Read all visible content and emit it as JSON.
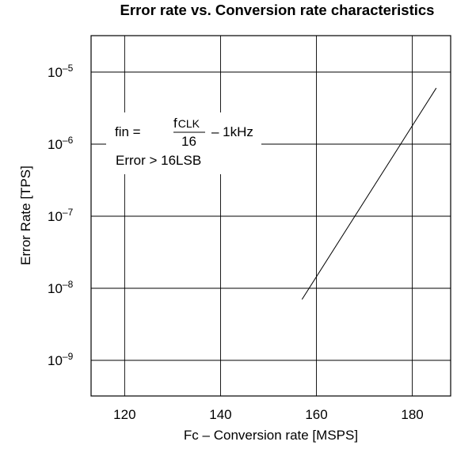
{
  "chart_data": {
    "type": "line",
    "title": "Error rate vs. Conversion rate characteristics",
    "xlabel": "Fc – Conversion rate [MSPS]",
    "ylabel": "Error Rate [TPS]",
    "xlim": [
      113,
      188
    ],
    "x_ticks": [
      {
        "value": 120,
        "label": "120"
      },
      {
        "value": 140,
        "label": "140"
      },
      {
        "value": 160,
        "label": "160"
      },
      {
        "value": 180,
        "label": "180"
      }
    ],
    "y_scale": "log",
    "y_ticks": [
      {
        "exp": -5,
        "base": "10",
        "sup": "–5"
      },
      {
        "exp": -6,
        "base": "10",
        "sup": "–6"
      },
      {
        "exp": -7,
        "base": "10",
        "sup": "–7"
      },
      {
        "exp": -8,
        "base": "10",
        "sup": "–8"
      },
      {
        "exp": -9,
        "base": "10",
        "sup": "–9"
      }
    ],
    "grid": true,
    "series": [
      {
        "x": [
          157,
          185
        ],
        "y": [
          7e-09,
          6e-06
        ]
      }
    ],
    "annotation": {
      "lhs": "fin =",
      "num_main": "f",
      "num_sub": "CLK",
      "den": "16",
      "rhs": "– 1kHz",
      "line2": "Error > 16LSB"
    }
  }
}
